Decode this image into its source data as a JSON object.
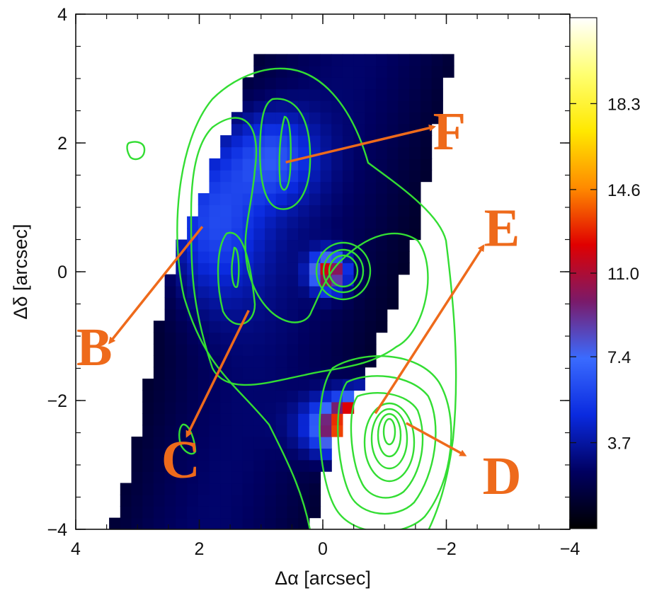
{
  "chart_data": {
    "type": "heatmap",
    "x_axis": {
      "label": "Δα [arcsec]",
      "range": [
        4,
        -4
      ],
      "ticks": [
        4,
        2,
        0,
        -2,
        -4
      ],
      "tick_labels": [
        "4",
        "2",
        "0",
        "−2",
        "−4"
      ]
    },
    "y_axis": {
      "label": "Δδ [arcsec]",
      "range": [
        -4,
        4
      ],
      "ticks": [
        4,
        2,
        0,
        -2,
        -4
      ],
      "tick_labels": [
        "4",
        "2",
        "0",
        "−2",
        "−4"
      ]
    },
    "colorbar": {
      "range": [
        0,
        22
      ],
      "ticks": [
        3.7,
        7.4,
        11.0,
        14.6,
        18.3
      ],
      "tick_labels": [
        "3.7",
        "7.4",
        "11.0",
        "14.6",
        "18.3"
      ],
      "colormap": [
        "#000000",
        "#000060",
        "#0a2adf",
        "#3a6bff",
        "#7a1a6a",
        "#e00000",
        "#ff8a00",
        "#ffe800",
        "#ffff70",
        "#ffffff"
      ]
    },
    "emission_peaks": [
      {
        "x": -0.8,
        "y": -2.4,
        "value": 21,
        "sx": 0.55,
        "sy": 0.32
      },
      {
        "x": -0.1,
        "y": 0.0,
        "value": 10,
        "sx": 0.2,
        "sy": 0.2
      },
      {
        "x": 1.8,
        "y": 0.8,
        "value": 4.5,
        "sx": 0.6,
        "sy": 0.9
      },
      {
        "x": 0.8,
        "y": 1.8,
        "value": 3.8,
        "sx": 0.5,
        "sy": 0.5
      }
    ],
    "contour_color": "#33dd33",
    "regions": [
      {
        "label": "B",
        "arrow_from": [
          1.95,
          0.7
        ],
        "arrow_to": [
          3.45,
          -1.1
        ],
        "label_at": [
          3.7,
          -1.45
        ]
      },
      {
        "label": "C",
        "arrow_from": [
          1.2,
          -0.6
        ],
        "arrow_to": [
          2.2,
          -2.55
        ],
        "label_at": [
          2.3,
          -3.2
        ]
      },
      {
        "label": "D",
        "arrow_from": [
          -1.35,
          -2.35
        ],
        "arrow_to": [
          -2.3,
          -2.85
        ],
        "label_at": [
          -2.9,
          -3.45
        ]
      },
      {
        "label": "E",
        "arrow_from": [
          -0.85,
          -2.2
        ],
        "arrow_to": [
          -2.6,
          0.4
        ],
        "label_at": [
          -2.9,
          0.4
        ]
      },
      {
        "label": "F",
        "arrow_from": [
          0.6,
          1.7
        ],
        "arrow_to": [
          -1.8,
          2.25
        ],
        "label_at": [
          -2.05,
          1.9
        ]
      }
    ],
    "arrow_color": "#ee6a1b"
  }
}
